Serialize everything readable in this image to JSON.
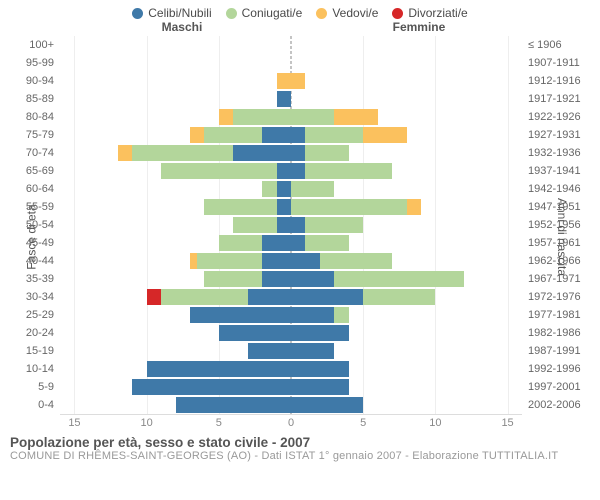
{
  "legend": {
    "celibi": {
      "label": "Celibi/Nubili",
      "color": "#3f79a8"
    },
    "coniugati": {
      "label": "Coniugati/e",
      "color": "#b3d69b"
    },
    "vedovi": {
      "label": "Vedovi/e",
      "color": "#fbc15e"
    },
    "divorziati": {
      "label": "Divorziati/e",
      "color": "#d62728"
    }
  },
  "headers": {
    "male": "Maschi",
    "female": "Femmine"
  },
  "axis_labels": {
    "left": "Fasce di età",
    "right": "Anni di nascita"
  },
  "title": "Popolazione per età, sesso e stato civile - 2007",
  "subtitle": "COMUNE DI RHÊMES-SAINT-GEORGES (AO) - Dati ISTAT 1° gennaio 2007 - Elaborazione TUTTITALIA.IT",
  "x_ticks": [
    15,
    10,
    5,
    0,
    5,
    10,
    15
  ],
  "x_max": 16,
  "colors": {
    "celibi": "#3f79a8",
    "coniugati": "#b3d69b",
    "vedovi": "#fbc15e",
    "divorziati": "#d62728",
    "grid": "#eeeeee",
    "text": "#666666"
  },
  "rows": [
    {
      "age": "100+",
      "years": "≤ 1906",
      "m": {
        "celibi": 0,
        "coniugati": 0,
        "vedovi": 0,
        "divorziati": 0
      },
      "f": {
        "celibi": 0,
        "coniugati": 0,
        "vedovi": 0,
        "divorziati": 0
      }
    },
    {
      "age": "95-99",
      "years": "1907-1911",
      "m": {
        "celibi": 0,
        "coniugati": 0,
        "vedovi": 0,
        "divorziati": 0
      },
      "f": {
        "celibi": 0,
        "coniugati": 0,
        "vedovi": 0,
        "divorziati": 0
      }
    },
    {
      "age": "90-94",
      "years": "1912-1916",
      "m": {
        "celibi": 0,
        "coniugati": 0,
        "vedovi": 1,
        "divorziati": 0
      },
      "f": {
        "celibi": 0,
        "coniugati": 0,
        "vedovi": 1,
        "divorziati": 0
      }
    },
    {
      "age": "85-89",
      "years": "1917-1921",
      "m": {
        "celibi": 1,
        "coniugati": 0,
        "vedovi": 0,
        "divorziati": 0
      },
      "f": {
        "celibi": 0,
        "coniugati": 0,
        "vedovi": 0,
        "divorziati": 0
      }
    },
    {
      "age": "80-84",
      "years": "1922-1926",
      "m": {
        "celibi": 0,
        "coniugati": 4,
        "vedovi": 1,
        "divorziati": 0
      },
      "f": {
        "celibi": 0,
        "coniugati": 3,
        "vedovi": 3,
        "divorziati": 0
      }
    },
    {
      "age": "75-79",
      "years": "1927-1931",
      "m": {
        "celibi": 2,
        "coniugati": 4,
        "vedovi": 1,
        "divorziati": 0
      },
      "f": {
        "celibi": 1,
        "coniugati": 4,
        "vedovi": 3,
        "divorziati": 0
      }
    },
    {
      "age": "70-74",
      "years": "1932-1936",
      "m": {
        "celibi": 4,
        "coniugati": 7,
        "vedovi": 1,
        "divorziati": 0
      },
      "f": {
        "celibi": 1,
        "coniugati": 3,
        "vedovi": 0,
        "divorziati": 0
      }
    },
    {
      "age": "65-69",
      "years": "1937-1941",
      "m": {
        "celibi": 1,
        "coniugati": 8,
        "vedovi": 0,
        "divorziati": 0
      },
      "f": {
        "celibi": 1,
        "coniugati": 6,
        "vedovi": 0,
        "divorziati": 0
      }
    },
    {
      "age": "60-64",
      "years": "1942-1946",
      "m": {
        "celibi": 1,
        "coniugati": 1,
        "vedovi": 0,
        "divorziati": 0
      },
      "f": {
        "celibi": 0,
        "coniugati": 3,
        "vedovi": 0,
        "divorziati": 0
      }
    },
    {
      "age": "55-59",
      "years": "1947-1951",
      "m": {
        "celibi": 1,
        "coniugati": 5,
        "vedovi": 0,
        "divorziati": 0
      },
      "f": {
        "celibi": 0,
        "coniugati": 8,
        "vedovi": 1,
        "divorziati": 0
      }
    },
    {
      "age": "50-54",
      "years": "1952-1956",
      "m": {
        "celibi": 1,
        "coniugati": 3,
        "vedovi": 0,
        "divorziati": 0
      },
      "f": {
        "celibi": 1,
        "coniugati": 4,
        "vedovi": 0,
        "divorziati": 0
      }
    },
    {
      "age": "45-49",
      "years": "1957-1961",
      "m": {
        "celibi": 2,
        "coniugati": 3,
        "vedovi": 0,
        "divorziati": 0
      },
      "f": {
        "celibi": 1,
        "coniugati": 3,
        "vedovi": 0,
        "divorziati": 0
      }
    },
    {
      "age": "40-44",
      "years": "1962-1966",
      "m": {
        "celibi": 2,
        "coniugati": 4.5,
        "vedovi": 0.5,
        "divorziati": 0
      },
      "f": {
        "celibi": 2,
        "coniugati": 5,
        "vedovi": 0,
        "divorziati": 0
      }
    },
    {
      "age": "35-39",
      "years": "1967-1971",
      "m": {
        "celibi": 2,
        "coniugati": 4,
        "vedovi": 0,
        "divorziati": 0
      },
      "f": {
        "celibi": 3,
        "coniugati": 9,
        "vedovi": 0,
        "divorziati": 0
      }
    },
    {
      "age": "30-34",
      "years": "1972-1976",
      "m": {
        "celibi": 3,
        "coniugati": 6,
        "vedovi": 0,
        "divorziati": 1
      },
      "f": {
        "celibi": 5,
        "coniugati": 5,
        "vedovi": 0,
        "divorziati": 0
      }
    },
    {
      "age": "25-29",
      "years": "1977-1981",
      "m": {
        "celibi": 7,
        "coniugati": 0,
        "vedovi": 0,
        "divorziati": 0
      },
      "f": {
        "celibi": 3,
        "coniugati": 1,
        "vedovi": 0,
        "divorziati": 0
      }
    },
    {
      "age": "20-24",
      "years": "1982-1986",
      "m": {
        "celibi": 5,
        "coniugati": 0,
        "vedovi": 0,
        "divorziati": 0
      },
      "f": {
        "celibi": 4,
        "coniugati": 0,
        "vedovi": 0,
        "divorziati": 0
      }
    },
    {
      "age": "15-19",
      "years": "1987-1991",
      "m": {
        "celibi": 3,
        "coniugati": 0,
        "vedovi": 0,
        "divorziati": 0
      },
      "f": {
        "celibi": 3,
        "coniugati": 0,
        "vedovi": 0,
        "divorziati": 0
      }
    },
    {
      "age": "10-14",
      "years": "1992-1996",
      "m": {
        "celibi": 10,
        "coniugati": 0,
        "vedovi": 0,
        "divorziati": 0
      },
      "f": {
        "celibi": 4,
        "coniugati": 0,
        "vedovi": 0,
        "divorziati": 0
      }
    },
    {
      "age": "5-9",
      "years": "1997-2001",
      "m": {
        "celibi": 11,
        "coniugati": 0,
        "vedovi": 0,
        "divorziati": 0
      },
      "f": {
        "celibi": 4,
        "coniugati": 0,
        "vedovi": 0,
        "divorziati": 0
      }
    },
    {
      "age": "0-4",
      "years": "2002-2006",
      "m": {
        "celibi": 8,
        "coniugati": 0,
        "vedovi": 0,
        "divorziati": 0
      },
      "f": {
        "celibi": 5,
        "coniugati": 0,
        "vedovi": 0,
        "divorziati": 0
      }
    }
  ]
}
